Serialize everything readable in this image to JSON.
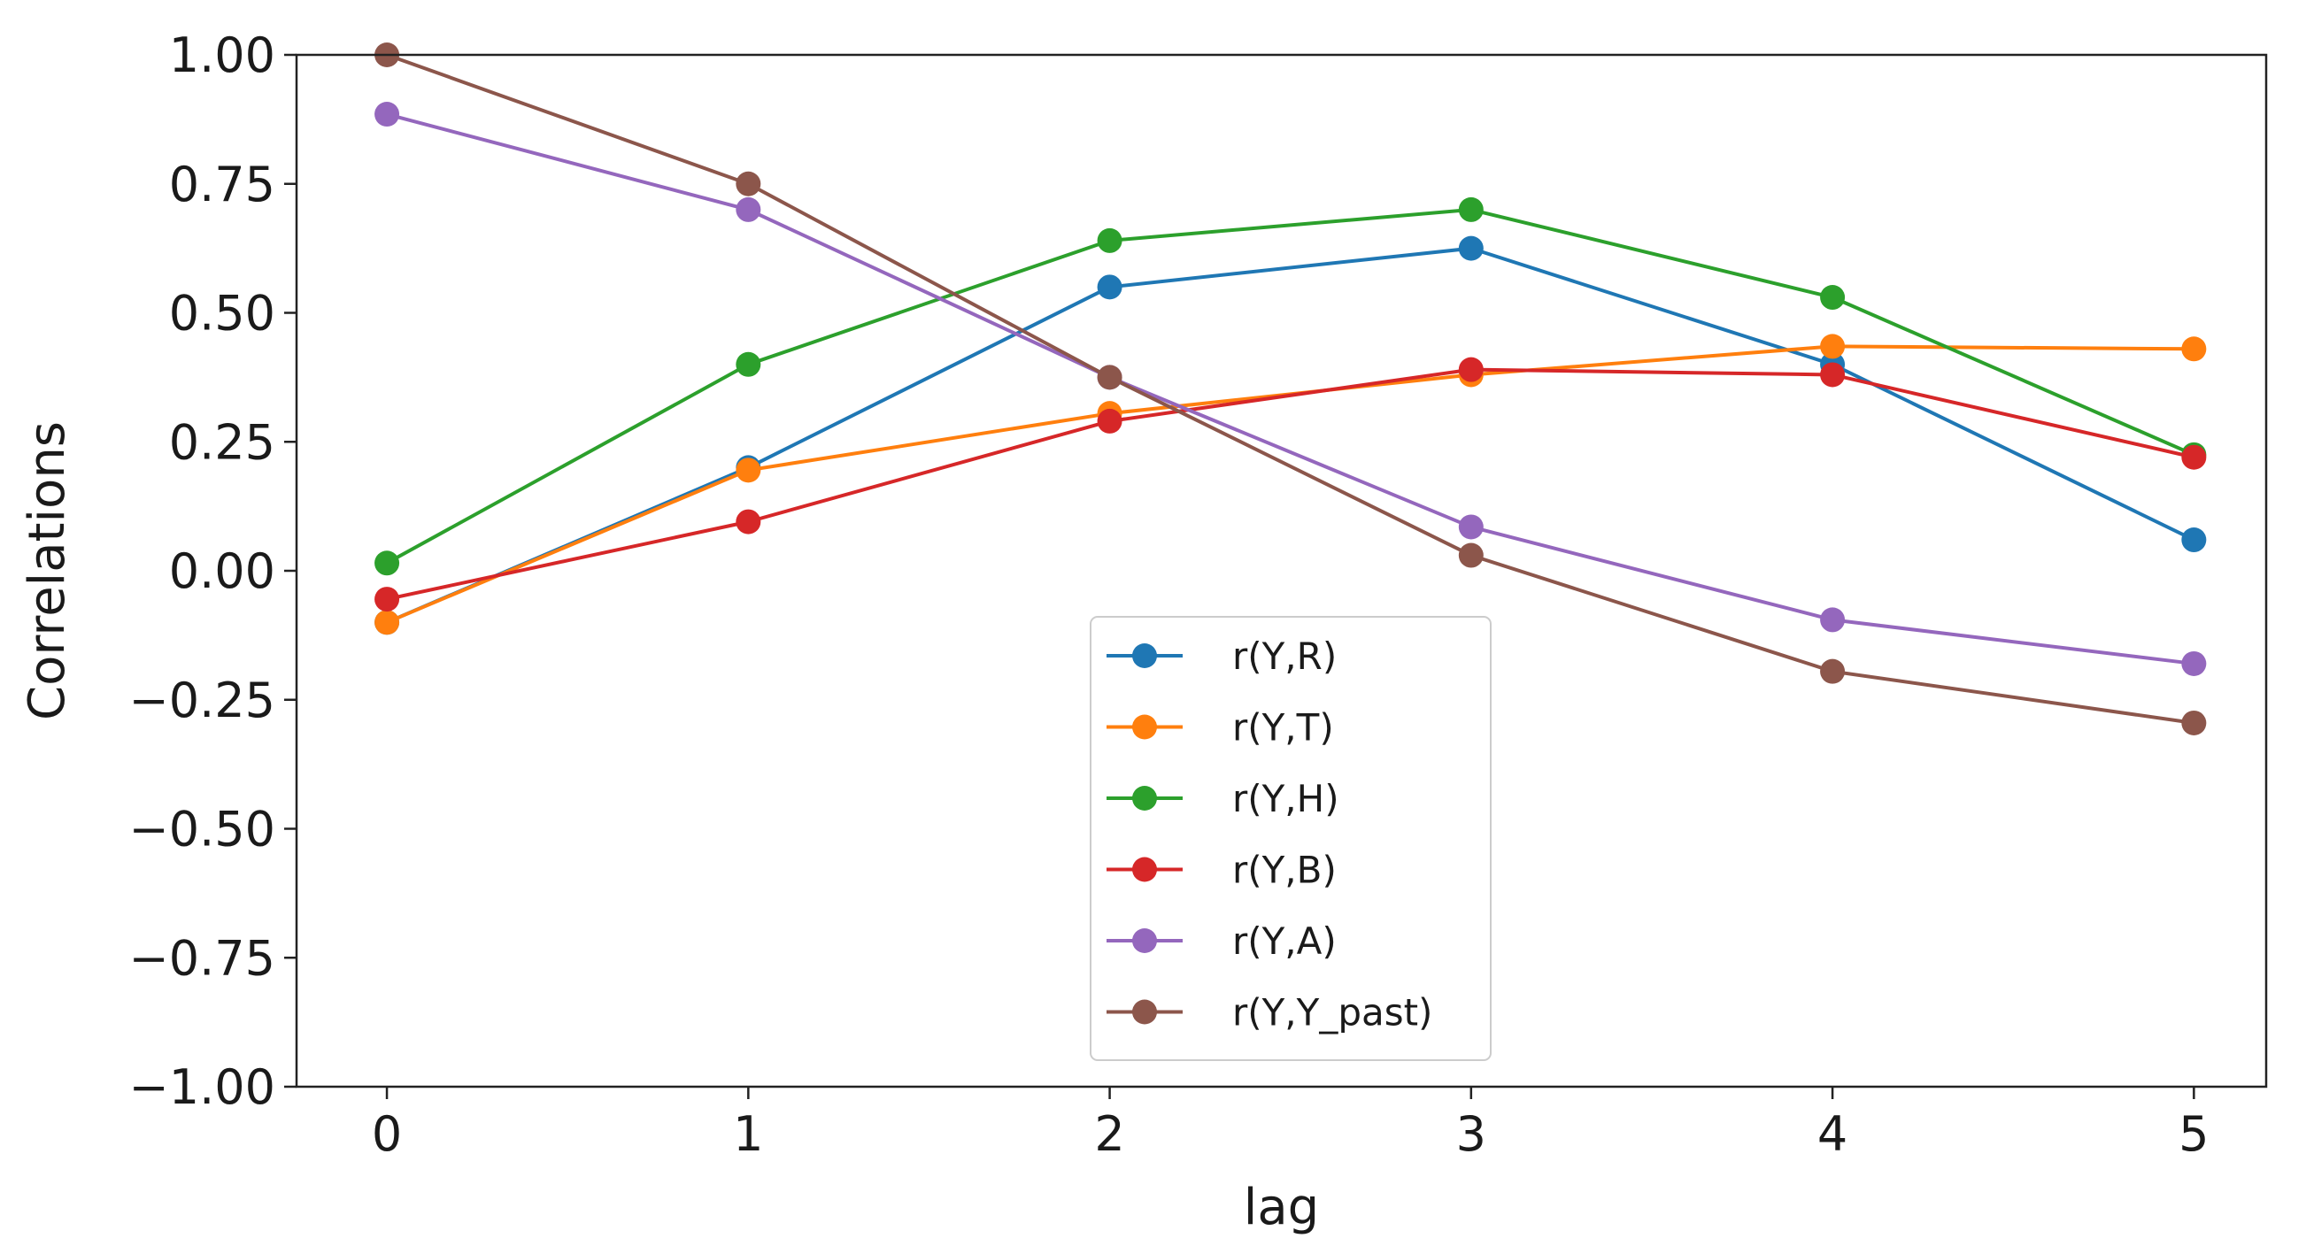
{
  "chart_data": {
    "type": "line",
    "title": "",
    "xlabel": "lag",
    "ylabel": "Correlations",
    "x": [
      0,
      1,
      2,
      3,
      4,
      5
    ],
    "xlim": [
      -0.25,
      5.2
    ],
    "ylim": [
      -1.0,
      1.0
    ],
    "x_ticks": [
      0,
      1,
      2,
      3,
      4,
      5
    ],
    "x_tick_labels": [
      "0",
      "1",
      "2",
      "3",
      "4",
      "5"
    ],
    "y_ticks": [
      1.0,
      0.75,
      0.5,
      0.25,
      0.0,
      -0.25,
      -0.5,
      -0.75,
      -1.0
    ],
    "y_tick_labels": [
      "1.00",
      "0.75",
      "0.50",
      "0.25",
      "0.00",
      "−0.25",
      "−0.50",
      "−0.75",
      "−1.00"
    ],
    "grid": false,
    "legend_position": "lower-center",
    "series": [
      {
        "name": "r(Y,R)",
        "color": "#1f77b4",
        "values": [
          -0.1,
          0.2,
          0.55,
          0.625,
          0.4,
          0.06
        ]
      },
      {
        "name": "r(Y,T)",
        "color": "#ff7f0e",
        "values": [
          -0.1,
          0.195,
          0.305,
          0.38,
          0.435,
          0.43
        ]
      },
      {
        "name": "r(Y,H)",
        "color": "#2ca02c",
        "values": [
          0.015,
          0.4,
          0.64,
          0.7,
          0.53,
          0.225
        ]
      },
      {
        "name": "r(Y,B)",
        "color": "#d62728",
        "values": [
          -0.055,
          0.095,
          0.29,
          0.39,
          0.38,
          0.22
        ]
      },
      {
        "name": "r(Y,A)",
        "color": "#9467bd",
        "values": [
          0.885,
          0.7,
          0.375,
          0.085,
          -0.095,
          -0.18
        ]
      },
      {
        "name": "r(Y,Y_past)",
        "color": "#8c564b",
        "values": [
          1.0,
          0.75,
          0.375,
          0.03,
          -0.195,
          -0.295
        ]
      }
    ]
  }
}
